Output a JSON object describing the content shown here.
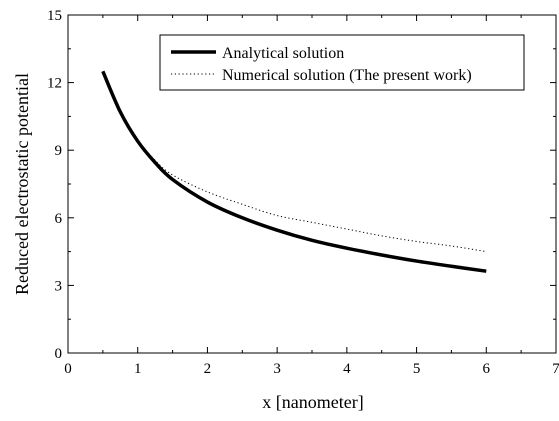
{
  "chart_data": {
    "type": "line",
    "title": "",
    "xlabel": "x [nanometer]",
    "ylabel": "Reduced electrostatic potential",
    "xlim": [
      0,
      7
    ],
    "ylim": [
      0,
      15
    ],
    "xticks": [
      0,
      1,
      2,
      3,
      4,
      5,
      6,
      7
    ],
    "yticks": [
      0,
      3,
      6,
      9,
      12,
      15
    ],
    "xtick_labels": [
      "0",
      "1",
      "2",
      "3",
      "4",
      "5",
      "6",
      "7"
    ],
    "ytick_labels": [
      "0",
      "3",
      "6",
      "9",
      "12",
      "15"
    ],
    "grid": false,
    "legend_position": "top-right",
    "series": [
      {
        "name": "Analytical solution",
        "style": "solid-thick",
        "color": "#000000",
        "x": [
          0.5,
          0.75,
          1.0,
          1.25,
          1.5,
          2.0,
          2.5,
          3.0,
          3.5,
          4.0,
          4.5,
          5.0,
          5.5,
          6.0
        ],
        "y": [
          12.5,
          10.7,
          9.4,
          8.45,
          7.7,
          6.7,
          6.0,
          5.45,
          5.0,
          4.65,
          4.35,
          4.08,
          3.85,
          3.63
        ]
      },
      {
        "name": "Numerical solution (The present work)",
        "style": "dotted-thin",
        "color": "#000000",
        "x": [
          0.5,
          0.75,
          1.0,
          1.25,
          1.5,
          2.0,
          2.5,
          3.0,
          3.5,
          4.0,
          4.5,
          5.0,
          5.5,
          6.0
        ],
        "y": [
          12.5,
          10.7,
          9.45,
          8.55,
          7.9,
          7.15,
          6.6,
          6.1,
          5.8,
          5.5,
          5.2,
          4.95,
          4.75,
          4.5
        ]
      }
    ]
  }
}
